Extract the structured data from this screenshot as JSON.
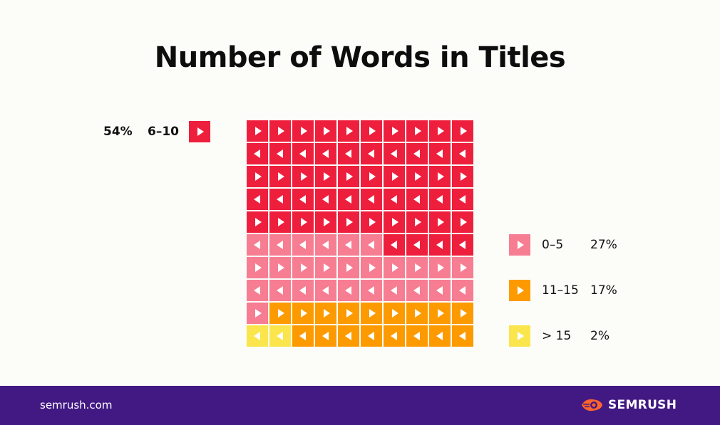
{
  "title": "Number of Words in Titles",
  "colors": {
    "background": "#fcfcf9",
    "footer": "#421983",
    "6-10": "#ee1f3d",
    "0-5": "#f67d92",
    "11-15": "#fd9a00",
    ">15": "#fbe54c",
    "brand_orange": "#ff642d"
  },
  "legend_main": {
    "pct": "54%",
    "range": "6–10"
  },
  "legend_side": [
    {
      "range": "0–5",
      "pct": "27%",
      "color": "#f67d92"
    },
    {
      "range": "11–15",
      "pct": "17%",
      "color": "#fd9a00"
    },
    {
      "range": "> 15",
      "pct": "2%",
      "color": "#fbe54c"
    }
  ],
  "chart_data": {
    "type": "waffle",
    "title": "Number of Words in Titles",
    "grid": {
      "rows": 10,
      "cols": 10
    },
    "fill_order": "row-wise serpentine from top-left",
    "categories": [
      "6–10",
      "0–5",
      "11–15",
      "> 15"
    ],
    "values": [
      54,
      27,
      17,
      2
    ],
    "unit": "%",
    "colors": [
      "#ee1f3d",
      "#f67d92",
      "#fd9a00",
      "#fbe54c"
    ]
  },
  "footer": {
    "site": "semrush.com",
    "brand": "SEMRUSH"
  }
}
